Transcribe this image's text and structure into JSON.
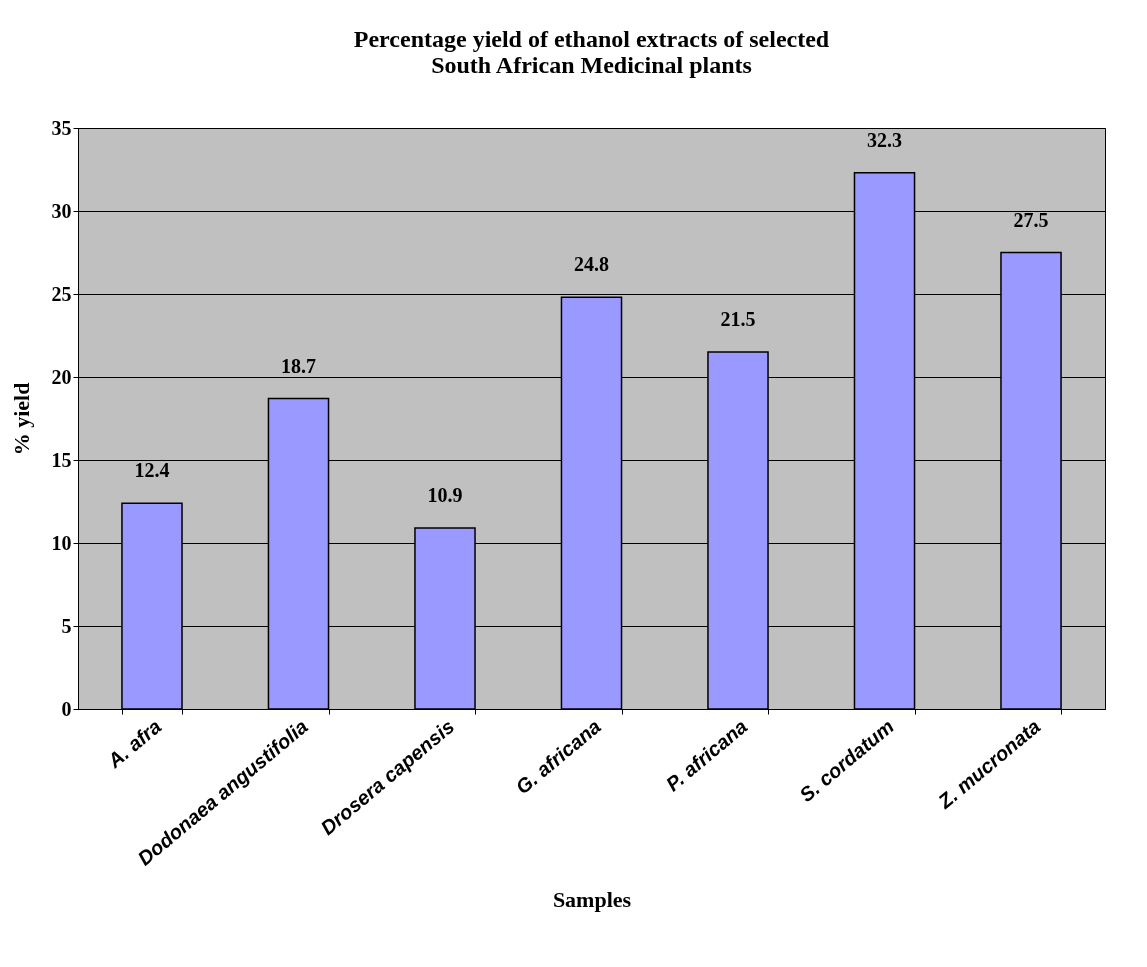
{
  "chart_data": {
    "type": "bar",
    "title": "Percentage yield of ethanol extracts of selected South African Medicinal plants",
    "xlabel": "Samples",
    "ylabel": "% yield",
    "categories": [
      "A. afra",
      "Dodonaea angustifolia",
      "Drosera capensis",
      "G. africana",
      "P. africana",
      "S. cordatum",
      "Z. mucronata"
    ],
    "values": [
      12.4,
      18.7,
      10.9,
      24.8,
      21.5,
      32.3,
      27.5
    ],
    "color": "#9999ff",
    "ylim": [
      0,
      35
    ],
    "yticks": [
      0,
      5,
      10,
      15,
      20,
      25,
      30,
      35
    ],
    "grid": "y",
    "data_labels": true
  }
}
